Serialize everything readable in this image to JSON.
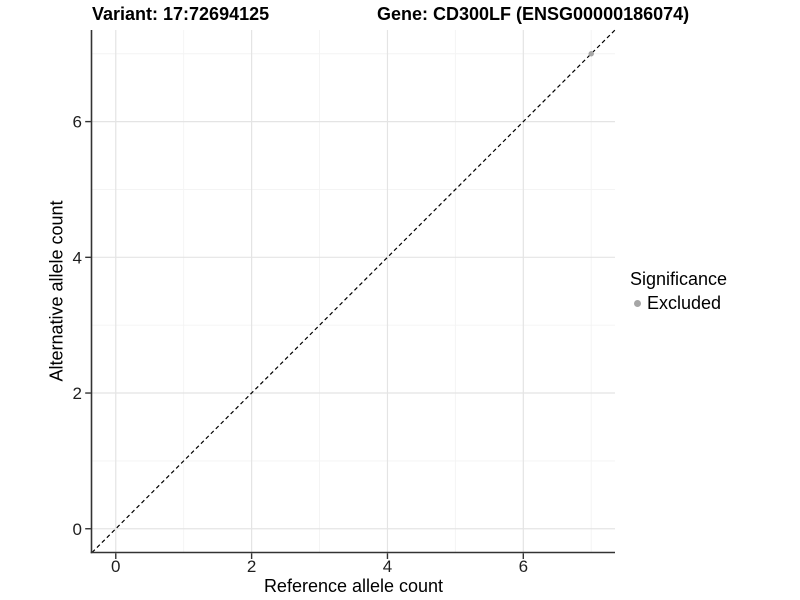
{
  "chart_data": {
    "type": "scatter",
    "titles": {
      "left": "Variant: 17:72694125",
      "right": "Gene: CD300LF (ENSG00000186074)"
    },
    "xlabel": "Reference allele count",
    "ylabel": "Alternative allele count",
    "xlim": [
      -0.35,
      7.35
    ],
    "ylim": [
      -0.35,
      7.35
    ],
    "x_ticks": [
      0,
      2,
      4,
      6
    ],
    "y_ticks": [
      0,
      2,
      4,
      6
    ],
    "x_minor_gridlines": [
      1,
      3,
      5,
      7
    ],
    "y_minor_gridlines": [
      1,
      3,
      5,
      7
    ],
    "grid": "on",
    "series": [
      {
        "name": "Excluded",
        "color": "#a6a6a6",
        "points": [
          {
            "x": 7,
            "y": 7
          }
        ]
      }
    ],
    "reference_line": {
      "kind": "identity",
      "style": "dashed",
      "color": "#000000"
    },
    "legend": {
      "title": "Significance",
      "position": "right",
      "items": [
        {
          "label": "Excluded",
          "color": "#a6a6a6"
        }
      ]
    },
    "style": {
      "grid_major_color": "#e4e4e4",
      "grid_minor_color": "#f3f3f3",
      "axis_line_color": "#333333",
      "tick_label_color": "#1f1f1f",
      "panel_background": "#ffffff"
    }
  }
}
